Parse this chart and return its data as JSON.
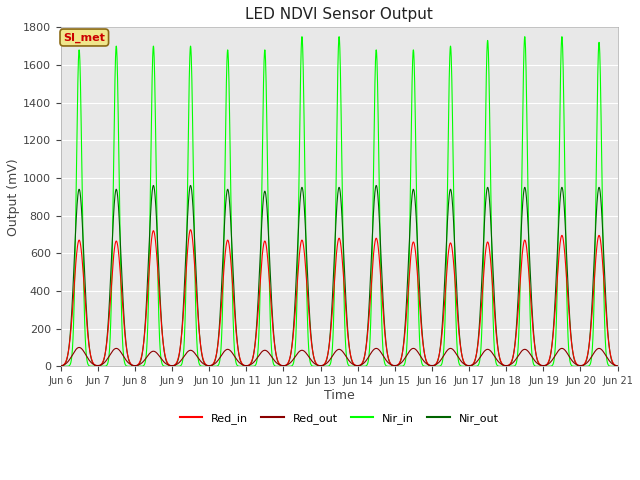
{
  "title": "LED NDVI Sensor Output",
  "xlabel": "Time",
  "ylabel": "Output (mV)",
  "ylim": [
    0,
    1800
  ],
  "background_color": "#ffffff",
  "plot_bg_color": "#e8e8e8",
  "grid_color": "#ffffff",
  "annotation_text": "SI_met",
  "annotation_bg": "#f0e68c",
  "annotation_border": "#8b6914",
  "num_cycles": 15,
  "line_colors": {
    "red_in": "#ff0000",
    "red_out": "#8b0000",
    "nir_in": "#00ff00",
    "nir_out": "#006400"
  },
  "legend_labels": [
    "Red_in",
    "Red_out",
    "Nir_in",
    "Nir_out"
  ],
  "x_tick_labels": [
    "Jun 6",
    "Jun 7",
    "Jun 8",
    "Jun 9",
    "Jun 10",
    "Jun 11",
    "Jun 12",
    "Jun 13",
    "Jun 14",
    "Jun 15",
    "Jun 16",
    "Jun 17",
    "Jun 18",
    "Jun 19",
    "Jun 20",
    "Jun 21"
  ],
  "yticks": [
    0,
    200,
    400,
    600,
    800,
    1000,
    1200,
    1400,
    1600,
    1800
  ]
}
